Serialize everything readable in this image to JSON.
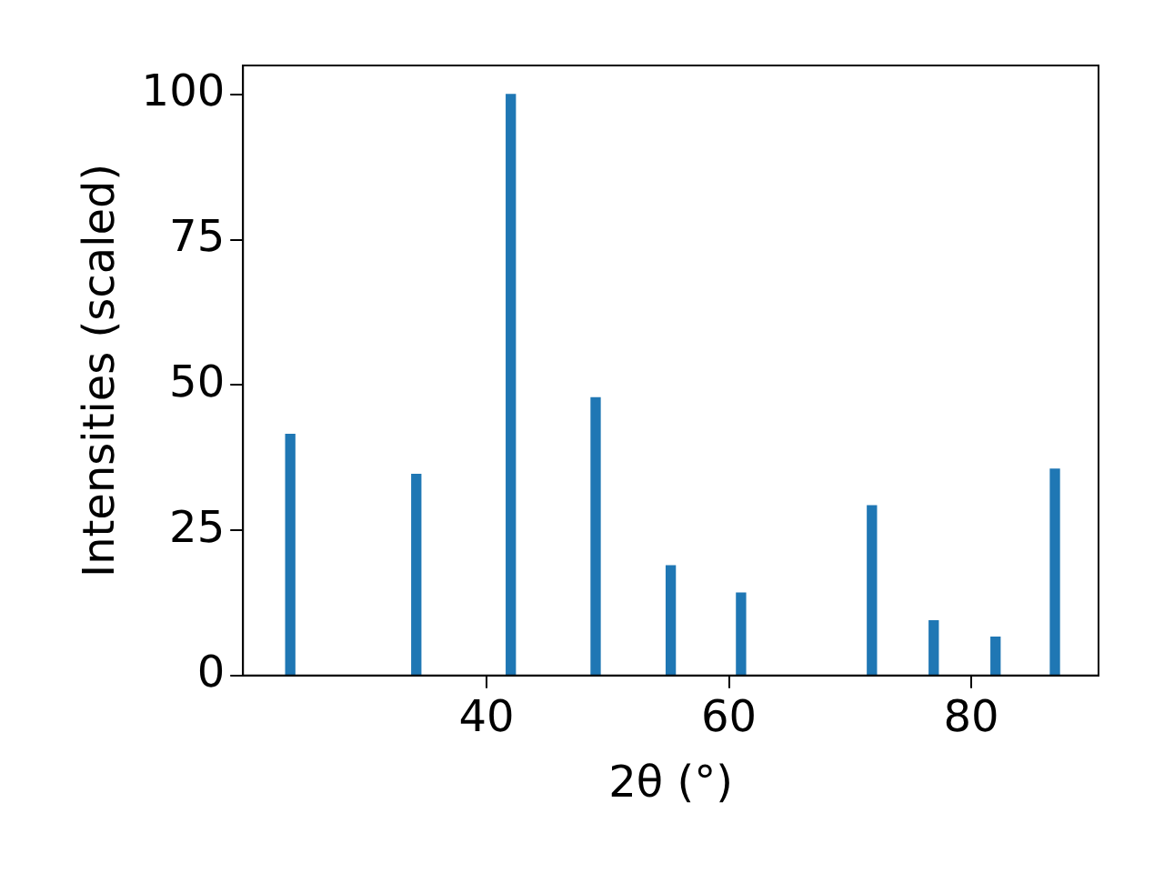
{
  "chart_data": {
    "type": "bar",
    "xlabel": "2θ (°)",
    "ylabel": "Intensities (scaled)",
    "x": [
      23.8,
      34.2,
      42.0,
      49.0,
      55.2,
      61.0,
      71.8,
      76.9,
      82.0,
      86.9
    ],
    "values": [
      41.5,
      34.6,
      100,
      47.8,
      18.9,
      14.2,
      29.2,
      9.4,
      6.6,
      35.5
    ],
    "color": "#1f77b4",
    "xlim": [
      19.9,
      90.5
    ],
    "xticks": [
      40,
      60,
      80
    ],
    "ylim": [
      0,
      105
    ],
    "yticks": [
      0,
      25,
      50,
      75,
      100
    ],
    "grid": false,
    "legend": false
  }
}
